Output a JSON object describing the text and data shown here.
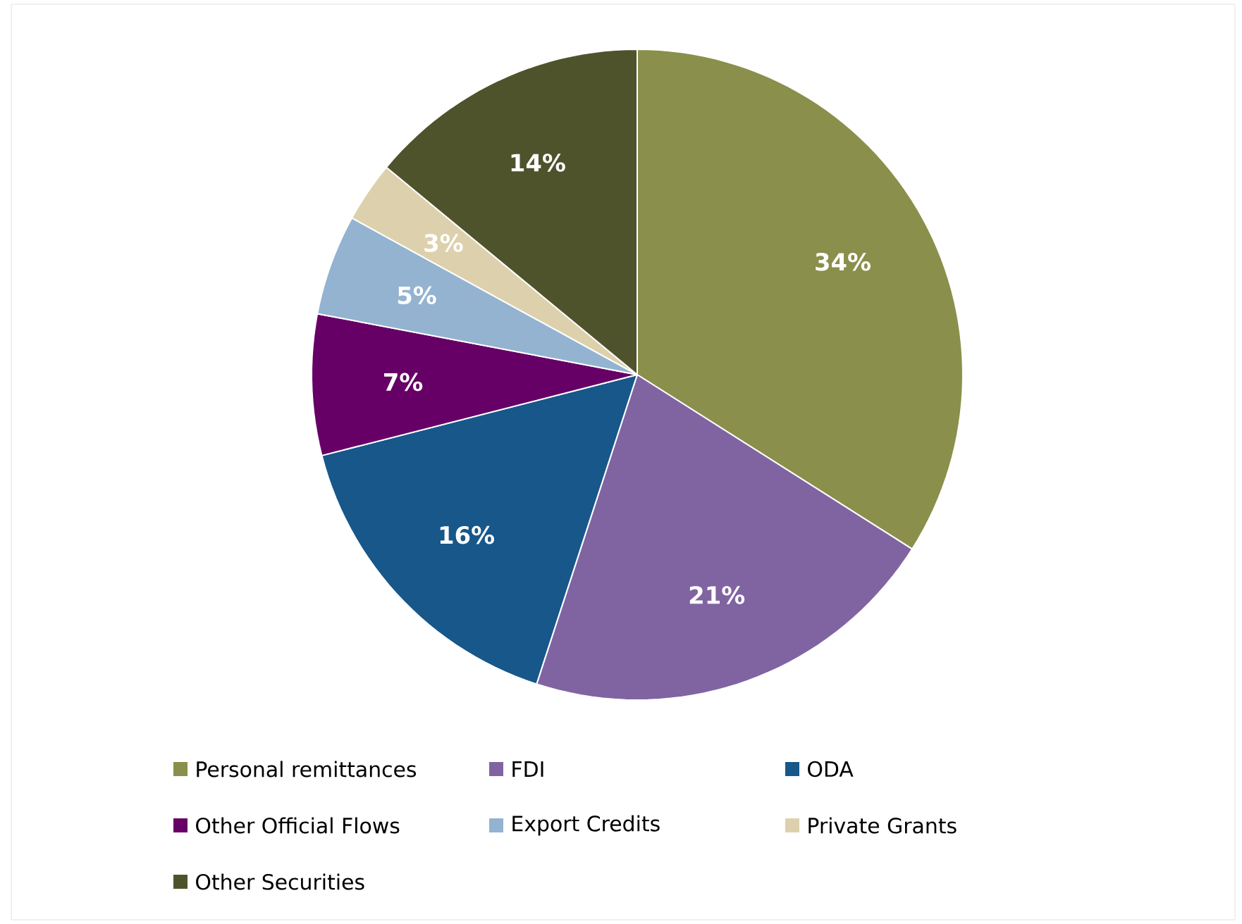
{
  "chart_data": {
    "type": "pie",
    "categories": [
      "Personal remittances",
      "FDI",
      "ODA",
      "Other Official Flows",
      "Export Credits",
      "Private Grants",
      "Other Securities"
    ],
    "values": [
      34,
      21,
      16,
      7,
      5,
      3,
      14
    ],
    "value_labels": [
      "34%",
      "21%",
      "16%",
      "7%",
      "5%",
      "3%",
      "14%"
    ],
    "colors": [
      "#8a8f4b",
      "#8064a2",
      "#17578a",
      "#660066",
      "#93b3d1",
      "#ddd0ac",
      "#4f532c"
    ],
    "legend": "bottom"
  }
}
